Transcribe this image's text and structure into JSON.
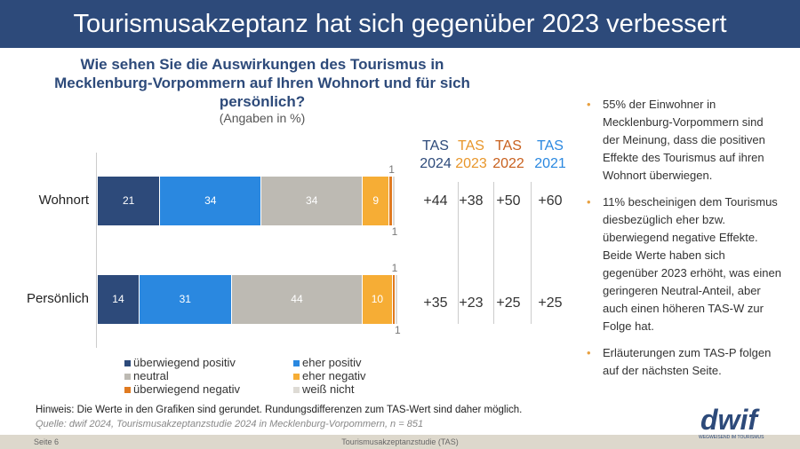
{
  "title": "Tourismusakzeptanz hat sich gegenüber 2023 verbessert",
  "question": "Wie sehen Sie die Auswirkungen des Tourismus in Mecklenburg-Vorpommern auf Ihren Wohnort und für sich persönlich?",
  "unit_note": "(Angaben in %)",
  "chart_data": {
    "type": "bar",
    "orientation": "horizontal",
    "stacked": true,
    "categories": [
      "Wohnort",
      "Persönlich"
    ],
    "series": [
      {
        "name": "überwiegend positiv",
        "color": "#2d4a7a",
        "values": [
          21,
          14
        ]
      },
      {
        "name": "eher positiv",
        "color": "#2a88e0",
        "values": [
          34,
          31
        ]
      },
      {
        "name": "neutral",
        "color": "#bdbab3",
        "values": [
          34,
          44
        ]
      },
      {
        "name": "eher negativ",
        "color": "#f6ad35",
        "values": [
          9,
          10
        ]
      },
      {
        "name": "überwiegend negativ",
        "color": "#e07a20",
        "values": [
          1,
          1
        ]
      },
      {
        "name": "weiß nicht",
        "color": "#dedbd5",
        "values": [
          1,
          1
        ]
      }
    ],
    "legend_position": "bottom"
  },
  "tas": {
    "columns": [
      {
        "label": "TAS",
        "year": "2024",
        "color": "#2d4a7a",
        "values": [
          "+44",
          "+35"
        ]
      },
      {
        "label": "TAS",
        "year": "2023",
        "color": "#e8962a",
        "values": [
          "+38",
          "+23"
        ]
      },
      {
        "label": "TAS",
        "year": "2022",
        "color": "#c8601e",
        "values": [
          "+50",
          "+25"
        ]
      },
      {
        "label": "TAS",
        "year": "2021",
        "color": "#2a88e0",
        "values": [
          "+60",
          "+25"
        ]
      }
    ]
  },
  "bullets": [
    "55% der Einwohner in Mecklenburg-Vorpommern sind der Meinung, dass die positiven Effekte des Tourismus auf ihren Wohnort überwiegen.",
    "11% bescheinigen dem Tourismus diesbezüglich eher bzw. überwiegend negative Effekte. Beide Werte haben sich gegenüber 2023 erhöht, was einen geringeren Neutral-Anteil, aber auch einen höheren TAS-W zur Folge hat.",
    "Erläuterungen zum TAS-P folgen auf der nächsten Seite."
  ],
  "note": "Hinweis: Die Werte in den Grafiken sind gerundet. Rundungsdifferenzen zum TAS-Wert sind daher möglich.",
  "source": "Quelle: dwif 2024, Tourismusakzeptanzstudie 2024 in Mecklenburg-Vorpommern, n = 851",
  "footer": {
    "page": "Seite 6",
    "center": "Tourismusakzeptanzstudie (TAS)"
  },
  "logo": {
    "text": "dwif",
    "tagline": "WEGWEISEND IM TOURISMUS"
  }
}
